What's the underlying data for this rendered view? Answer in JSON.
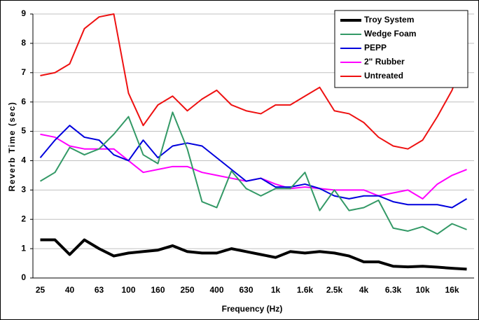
{
  "chart_data": {
    "type": "line",
    "x_label": "Frequency (Hz)",
    "y_label": "Reverb Time (sec)",
    "categories": [
      "25",
      null,
      "40",
      null,
      "63",
      null,
      "100",
      null,
      "160",
      null,
      "250",
      null,
      "400",
      null,
      "630",
      null,
      "1k",
      null,
      "1.6k",
      null,
      "2.5k",
      null,
      "4k",
      null,
      "6.3k",
      null,
      "10k",
      null,
      "16k",
      null
    ],
    "ylim": [
      0,
      9
    ],
    "yticks": [
      0,
      1,
      2,
      3,
      4,
      5,
      6,
      7,
      8,
      9
    ],
    "grid": true,
    "legend": "top-right",
    "series": [
      {
        "name": "Troy System",
        "color": "#000000",
        "values": [
          1.3,
          1.3,
          0.8,
          1.3,
          1.0,
          0.75,
          0.85,
          0.9,
          0.95,
          1.1,
          0.9,
          0.85,
          0.85,
          1.0,
          0.9,
          0.8,
          0.7,
          0.9,
          0.85,
          0.9,
          0.85,
          0.75,
          0.55,
          0.55,
          0.4,
          0.38,
          0.4,
          0.37,
          0.33,
          0.3
        ]
      },
      {
        "name": "Wedge Foam",
        "color": "#339966",
        "values": [
          3.3,
          3.6,
          4.45,
          4.2,
          4.4,
          4.9,
          5.5,
          4.2,
          3.9,
          5.65,
          4.4,
          2.6,
          2.4,
          3.65,
          3.05,
          2.8,
          3.05,
          3.05,
          3.6,
          2.3,
          3.0,
          2.3,
          2.4,
          2.65,
          1.7,
          1.6,
          1.75,
          1.5,
          1.85,
          1.65
        ]
      },
      {
        "name": "PEPP",
        "color": "#0000dd",
        "values": [
          4.1,
          4.7,
          5.2,
          4.8,
          4.7,
          4.2,
          4.0,
          4.7,
          4.1,
          4.5,
          4.6,
          4.5,
          4.1,
          3.7,
          3.3,
          3.4,
          3.1,
          3.1,
          3.2,
          3.05,
          2.8,
          2.7,
          2.8,
          2.8,
          2.6,
          2.5,
          2.5,
          2.5,
          2.4,
          2.7
        ]
      },
      {
        "name": "2\" Rubber",
        "color": "#ff00ff",
        "values": [
          4.9,
          4.8,
          4.5,
          4.4,
          4.4,
          4.4,
          4.0,
          3.6,
          3.7,
          3.8,
          3.8,
          3.6,
          3.5,
          3.4,
          3.3,
          3.4,
          3.2,
          3.05,
          3.1,
          3.05,
          3.0,
          3.0,
          3.0,
          2.8,
          2.9,
          3.0,
          2.7,
          3.2,
          3.5,
          3.7
        ]
      },
      {
        "name": "Untreated",
        "color": "#ee1111",
        "values": [
          6.9,
          7.0,
          7.3,
          8.5,
          8.9,
          9.0,
          6.3,
          5.2,
          5.9,
          6.2,
          5.7,
          6.1,
          6.4,
          5.9,
          5.7,
          5.6,
          5.9,
          5.9,
          6.2,
          6.5,
          5.7,
          5.6,
          5.3,
          4.8,
          4.5,
          4.4,
          4.7,
          5.5,
          6.4,
          7.8
        ]
      }
    ]
  }
}
